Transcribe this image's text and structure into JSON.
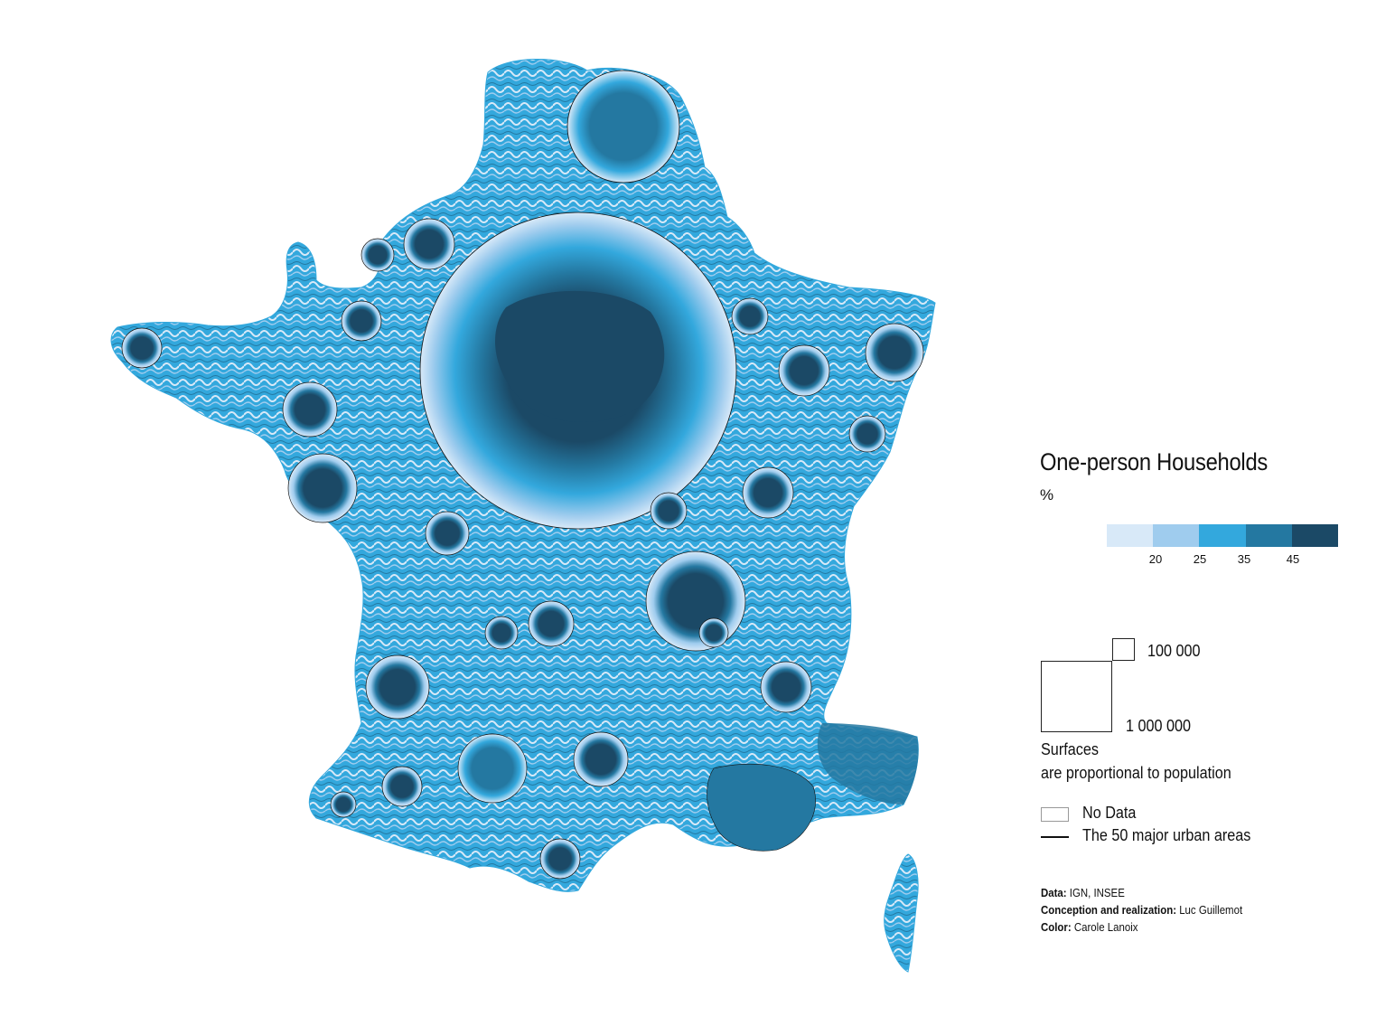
{
  "legend": {
    "title": "One-person Households",
    "unit": "%",
    "classes": [
      {
        "color": "#d8e9f8"
      },
      {
        "color": "#9fccee"
      },
      {
        "color": "#33a8dd"
      },
      {
        "color": "#2478a1"
      },
      {
        "color": "#1b4966"
      }
    ],
    "breaks": [
      "20",
      "25",
      "35",
      "45"
    ],
    "size_small_label": "100 000",
    "size_big_label": "1 000 000",
    "surfaces_line1": "Surfaces",
    "surfaces_line2": "are proportional to population",
    "no_data_label": "No Data",
    "urban_label": "The 50 major urban areas"
  },
  "credits": {
    "data_key": "Data:",
    "data_val": " IGN, INSEE",
    "conception_key": "Conception and realization:",
    "conception_val": " Luc Guillemot",
    "color_key": "Color:",
    "color_val": " Carole Lanoix"
  },
  "colors": {
    "c1": "#d8e9f8",
    "c2": "#9fccee",
    "c3": "#33a8dd",
    "c4": "#2478a1",
    "c5": "#1b4966"
  },
  "map": {
    "type": "cartogram",
    "subject": "France",
    "cities": [
      {
        "level": 4
      },
      {
        "level": 4
      },
      {
        "level": 4
      },
      {
        "level": 4
      },
      {
        "level": 4
      },
      {
        "level": 4
      },
      {
        "level": 4
      },
      {
        "level": 4
      },
      {
        "level": 4
      },
      {
        "level": 3
      },
      {
        "level": 4
      },
      {
        "level": 4
      },
      {
        "level": 4
      },
      {
        "level": 4
      },
      {
        "level": 4
      },
      {
        "level": 4
      },
      {
        "level": 4
      },
      {
        "level": 4
      },
      {
        "level": 4
      },
      {
        "level": 4
      },
      {
        "level": 4
      },
      {
        "level": 4
      },
      {
        "level": 4
      },
      {
        "level": 4
      }
    ]
  }
}
